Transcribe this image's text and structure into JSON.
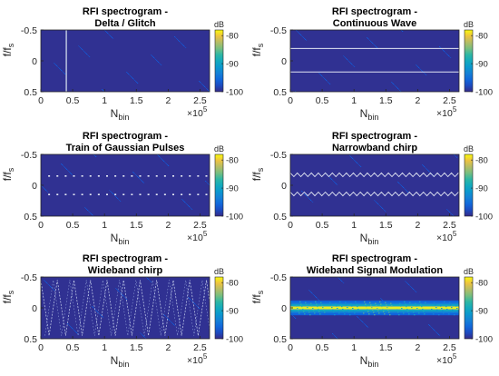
{
  "chart_data": [
    {
      "type": "heatmap",
      "title": [
        "RFI spectrogram -",
        "Delta / Glitch"
      ],
      "xlabel": "N",
      "xlabel_sub": "bin",
      "ylabel": "f/f",
      "ylabel_sub": "s",
      "xlim": [
        0,
        265000
      ],
      "ylim": [
        -0.5,
        0.5
      ],
      "y_reversed": true,
      "xticks": [
        "0",
        "0.5",
        "1",
        "1.5",
        "2",
        "2.5"
      ],
      "xtick_values": [
        0,
        50000,
        100000,
        150000,
        200000,
        250000
      ],
      "x_multiplier": "×10",
      "x_multiplier_exp": "5",
      "yticks": [
        "-0.5",
        "0",
        "0.5"
      ],
      "ytick_values": [
        -0.5,
        0,
        0.5
      ],
      "colorbar": {
        "label": "dB",
        "ticks": [
          "-80",
          "-90",
          "-100"
        ],
        "tick_values": [
          -80,
          -90,
          -100
        ],
        "range": [
          -100,
          -78
        ]
      },
      "signal": {
        "kind": "delta",
        "x": 40000,
        "level": -88
      }
    },
    {
      "type": "heatmap",
      "title": [
        "RFI spectrogram -",
        "Continuous Wave"
      ],
      "xlabel": "N",
      "xlabel_sub": "bin",
      "ylabel": "f/f",
      "ylabel_sub": "s",
      "xlim": [
        0,
        265000
      ],
      "ylim": [
        -0.5,
        0.5
      ],
      "y_reversed": true,
      "xticks": [
        "0",
        "0.5",
        "1",
        "1.5",
        "2",
        "2.5"
      ],
      "xtick_values": [
        0,
        50000,
        100000,
        150000,
        200000,
        250000
      ],
      "x_multiplier": "×10",
      "x_multiplier_exp": "5",
      "yticks": [
        "-0.5",
        "0",
        "0.5"
      ],
      "ytick_values": [
        -0.5,
        0,
        0.5
      ],
      "colorbar": {
        "label": "dB",
        "ticks": [
          "-80",
          "-90",
          "-100"
        ],
        "tick_values": [
          -80,
          -90,
          -100
        ],
        "range": [
          -100,
          -78
        ]
      },
      "signal": {
        "kind": "cw",
        "freqs": [
          -0.2,
          0.18
        ],
        "level": -86
      }
    },
    {
      "type": "heatmap",
      "title": [
        "RFI spectrogram -",
        "Train of Gaussian Pulses"
      ],
      "xlabel": "N",
      "xlabel_sub": "bin",
      "ylabel": "f/f",
      "ylabel_sub": "s",
      "xlim": [
        0,
        265000
      ],
      "ylim": [
        -0.5,
        0.5
      ],
      "y_reversed": true,
      "xticks": [
        "0",
        "0.5",
        "1",
        "1.5",
        "2",
        "2.5"
      ],
      "xtick_values": [
        0,
        50000,
        100000,
        150000,
        200000,
        250000
      ],
      "x_multiplier": "×10",
      "x_multiplier_exp": "5",
      "yticks": [
        "-0.5",
        "0",
        "0.5"
      ],
      "ytick_values": [
        -0.5,
        0,
        0.5
      ],
      "colorbar": {
        "label": "dB",
        "ticks": [
          "-80",
          "-90",
          "-100"
        ],
        "tick_values": [
          -80,
          -90,
          -100
        ],
        "range": [
          -100,
          -78
        ]
      },
      "signal": {
        "kind": "pulses",
        "freqs": [
          -0.15,
          0.15
        ],
        "period": 13000,
        "level": -86
      }
    },
    {
      "type": "heatmap",
      "title": [
        "RFI spectrogram -",
        "Narrowband chirp"
      ],
      "xlabel": "N",
      "xlabel_sub": "bin",
      "ylabel": "f/f",
      "ylabel_sub": "s",
      "xlim": [
        0,
        265000
      ],
      "ylim": [
        -0.5,
        0.5
      ],
      "y_reversed": true,
      "xticks": [
        "0",
        "0.5",
        "1",
        "1.5",
        "2",
        "2.5"
      ],
      "xtick_values": [
        0,
        50000,
        100000,
        150000,
        200000,
        250000
      ],
      "x_multiplier": "×10",
      "x_multiplier_exp": "5",
      "yticks": [
        "-0.5",
        "0",
        "0.5"
      ],
      "ytick_values": [
        -0.5,
        0,
        0.5
      ],
      "colorbar": {
        "label": "dB",
        "ticks": [
          "-80",
          "-90",
          "-100"
        ],
        "tick_values": [
          -80,
          -90,
          -100
        ],
        "range": [
          -100,
          -78
        ]
      },
      "signal": {
        "kind": "nb_chirp",
        "centers": [
          -0.17,
          0.14
        ],
        "amplitude": 0.03,
        "period": 11000,
        "level": -86
      }
    },
    {
      "type": "heatmap",
      "title": [
        "RFI spectrogram -",
        "Wideband chirp"
      ],
      "xlabel": "N",
      "xlabel_sub": "bin",
      "ylabel": "f/f",
      "ylabel_sub": "s",
      "xlim": [
        0,
        265000
      ],
      "ylim": [
        -0.5,
        0.5
      ],
      "y_reversed": true,
      "xticks": [
        "0",
        "0.5",
        "1",
        "1.5",
        "2",
        "2.5"
      ],
      "xtick_values": [
        0,
        50000,
        100000,
        150000,
        200000,
        250000
      ],
      "x_multiplier": "×10",
      "x_multiplier_exp": "5",
      "yticks": [
        "-0.5",
        "0",
        "0.5"
      ],
      "ytick_values": [
        -0.5,
        0,
        0.5
      ],
      "colorbar": {
        "label": "dB",
        "ticks": [
          "-80",
          "-90",
          "-100"
        ],
        "tick_values": [
          -80,
          -90,
          -100
        ],
        "range": [
          -100,
          -78
        ]
      },
      "signal": {
        "kind": "wb_chirp",
        "amplitude": 0.45,
        "period": 26000,
        "level": -88
      }
    },
    {
      "type": "heatmap",
      "title": [
        "RFI spectrogram -",
        "Wideband Signal Modulation"
      ],
      "xlabel": "N",
      "xlabel_sub": "bin",
      "ylabel": "f/f",
      "ylabel_sub": "s",
      "xlim": [
        0,
        265000
      ],
      "ylim": [
        -0.5,
        0.5
      ],
      "y_reversed": true,
      "xticks": [
        "0",
        "0.5",
        "1",
        "1.5",
        "2",
        "2.5"
      ],
      "xtick_values": [
        0,
        50000,
        100000,
        150000,
        200000,
        250000
      ],
      "x_multiplier": "×10",
      "x_multiplier_exp": "5",
      "yticks": [
        "-0.5",
        "0",
        "0.5"
      ],
      "ytick_values": [
        -0.5,
        0,
        0.5
      ],
      "colorbar": {
        "label": "dB",
        "ticks": [
          "-80",
          "-90",
          "-100"
        ],
        "tick_values": [
          -80,
          -90,
          -100
        ],
        "range": [
          -100,
          -78
        ]
      },
      "signal": {
        "kind": "wideband",
        "center": 0,
        "width": 0.12,
        "level": -80
      }
    }
  ]
}
